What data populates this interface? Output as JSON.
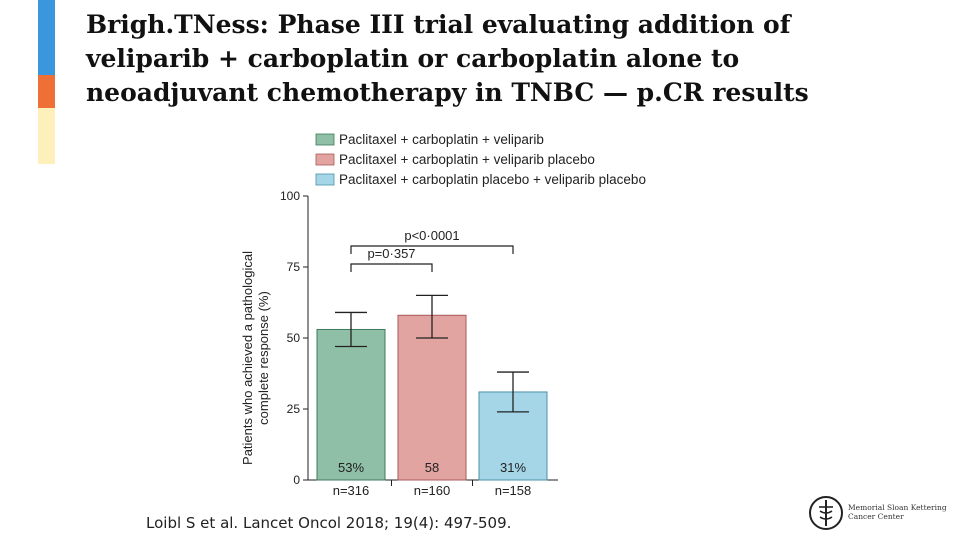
{
  "slide": {
    "title_lines": [
      "Brigh.TNess: Phase III trial evaluating addition of",
      "veliparib + carboplatin or carboplatin alone to",
      "neoadjuvant chemotherapy in TNBC — p.CR results"
    ],
    "citation": "Loibl S et al. Lancet Oncol 2018; 19(4): 497-509.",
    "logo": {
      "line1": "Memorial Sloan Kettering",
      "line2": "Cancer Center"
    },
    "accent_colors": [
      "#3a96dd",
      "#ee7036",
      "#fdf0bb"
    ]
  },
  "chart_data": {
    "type": "bar",
    "ylabel_lines": [
      "Patients who achieved a pathological",
      "complete response (%)"
    ],
    "ylim": [
      0,
      100
    ],
    "yticks": [
      0,
      25,
      50,
      75,
      100
    ],
    "series": [
      {
        "name": "Paclitaxel + carboplatin + veliparib",
        "value": 53,
        "ci": [
          47,
          59
        ],
        "label": "53%",
        "n": "n=316",
        "color": "#8fbfa6",
        "stroke": "#3f7a5c"
      },
      {
        "name": "Paclitaxel + carboplatin + veliparib placebo",
        "value": 58,
        "ci": [
          50,
          65
        ],
        "label": "58",
        "n": "n=160",
        "color": "#e2a4a1",
        "stroke": "#a95a57"
      },
      {
        "name": "Paclitaxel + carboplatin placebo + veliparib placebo",
        "value": 31,
        "ci": [
          24,
          38
        ],
        "label": "31%",
        "n": "n=158",
        "color": "#a5d6e8",
        "stroke": "#4e8fa8"
      }
    ],
    "comparisons": [
      {
        "between": [
          0,
          1
        ],
        "label": "p=0·357"
      },
      {
        "between": [
          0,
          2
        ],
        "label": "p<0·0001"
      }
    ]
  }
}
